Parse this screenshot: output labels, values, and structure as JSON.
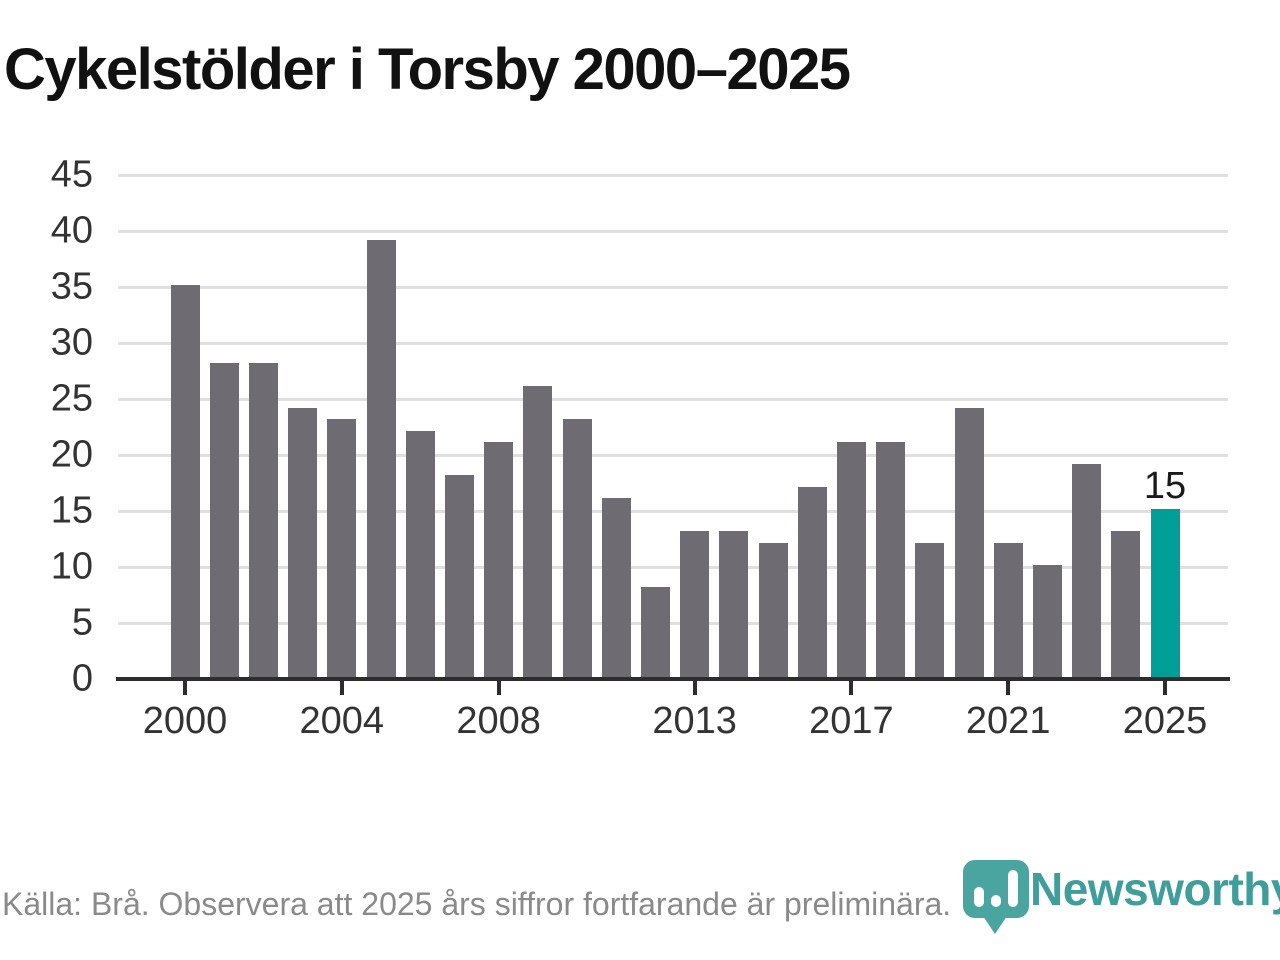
{
  "title": "Cykelstölder i Torsby 2000–2025",
  "source_note": "Källa: Brå. Observera att 2025 års siffror fortfarande är preliminära.",
  "branding": {
    "wordmark": "Newsworthy",
    "logo_icon": "newsworthy-pin-barchart-icon"
  },
  "colors": {
    "bar": "#6e6c72",
    "highlight_bar": "#009e96",
    "gridline": "#e0e0e0",
    "axis": "#2d2d2d",
    "tick_label": "#333333",
    "title": "#111111",
    "source_text": "#8a8a8a",
    "brand_teal": "#4aa5a1"
  },
  "chart_data": {
    "type": "bar",
    "title": "Cykelstölder i Torsby 2000–2025",
    "xlabel": "",
    "ylabel": "",
    "x": [
      2000,
      2001,
      2002,
      2003,
      2004,
      2005,
      2006,
      2007,
      2008,
      2009,
      2010,
      2011,
      2012,
      2013,
      2014,
      2015,
      2016,
      2017,
      2018,
      2019,
      2020,
      2021,
      2022,
      2023,
      2024,
      2025
    ],
    "values": [
      35,
      28,
      28,
      24,
      23,
      39,
      22,
      18,
      21,
      26,
      23,
      16,
      8,
      13,
      13,
      12,
      17,
      21,
      21,
      12,
      24,
      12,
      10,
      19,
      13,
      15
    ],
    "highlight_x": 2025,
    "data_label": {
      "x": 2025,
      "text": "15"
    },
    "x_tick_labels": [
      2000,
      2004,
      2008,
      2013,
      2017,
      2021,
      2025
    ],
    "y_tick_labels": [
      0,
      5,
      10,
      15,
      20,
      25,
      30,
      35,
      40,
      45
    ],
    "ylim": [
      0,
      45
    ],
    "grid": "horizontal-only",
    "legend": "none"
  }
}
